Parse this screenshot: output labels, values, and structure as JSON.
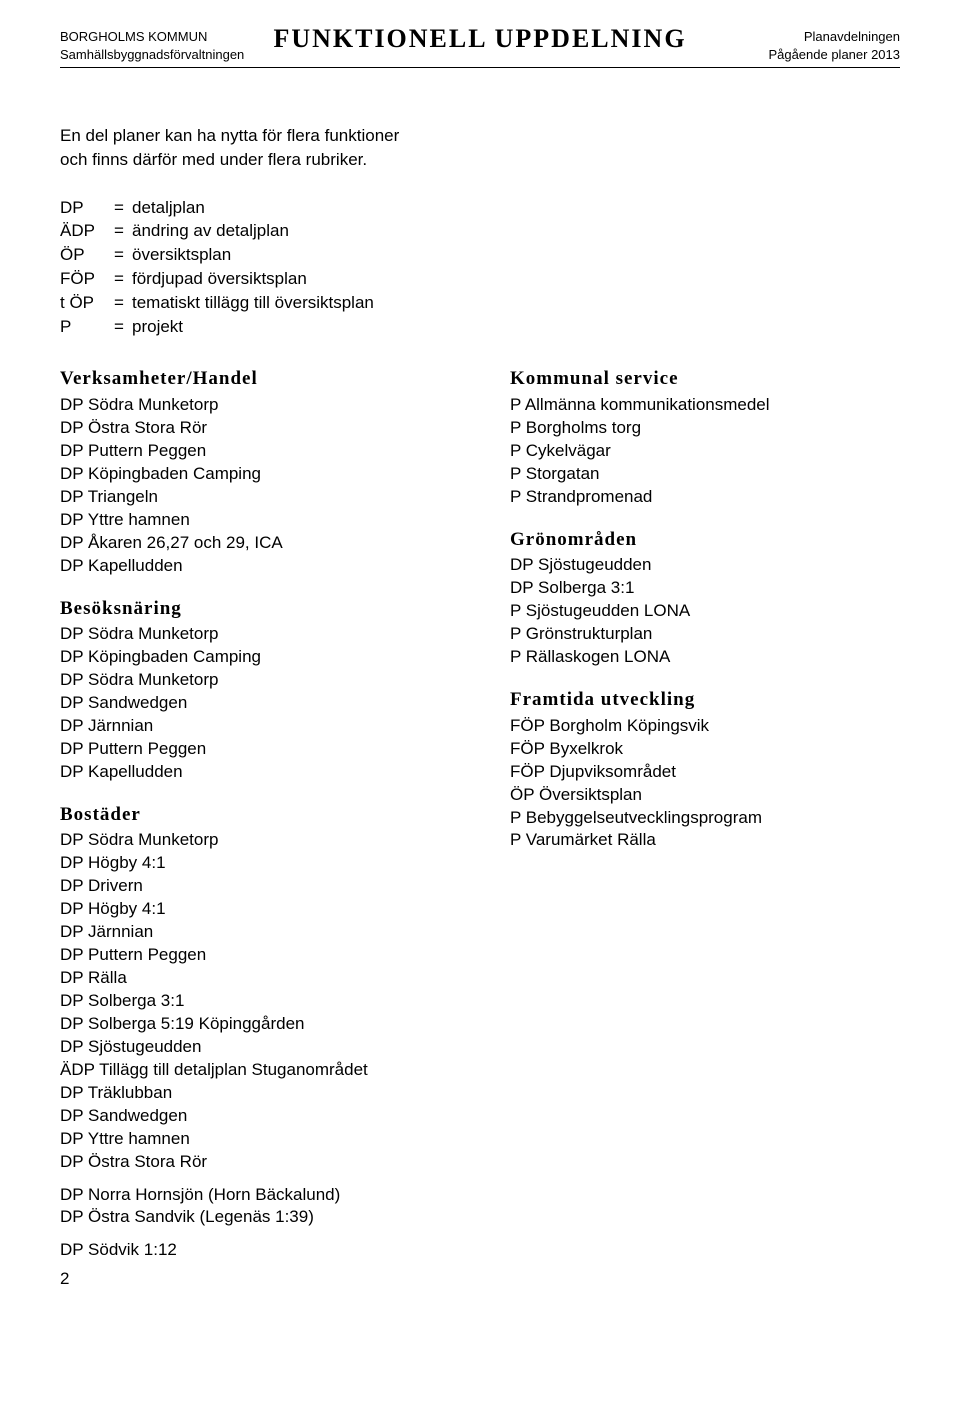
{
  "header": {
    "left_line1": "BORGHOLMS KOMMUN",
    "left_line2": "Samhällsbyggnadsförvaltningen",
    "title": "FUNKTIONELL UPPDELNING",
    "right_line1": "Planavdelningen",
    "right_line2": "Pågående planer 2013"
  },
  "intro": {
    "line1": "En del planer kan ha nytta för flera funktioner",
    "line2": "och finns därför med under flera rubriker."
  },
  "defs": [
    {
      "key": "DP",
      "val": "detaljplan"
    },
    {
      "key": "ÄDP",
      "val": "ändring av detaljplan"
    },
    {
      "key": "ÖP",
      "val": "översiktsplan"
    },
    {
      "key": "FÖP",
      "val": "fördjupad översiktsplan"
    },
    {
      "key": "t ÖP",
      "val": "tematiskt tillägg till översiktsplan"
    },
    {
      "key": "P",
      "val": "projekt"
    }
  ],
  "left": {
    "sec1": {
      "heading": "Verksamheter/Handel",
      "items": [
        "DP Södra Munketorp",
        "DP Östra Stora Rör",
        "DP Puttern Peggen",
        "DP Köpingbaden Camping",
        "DP Triangeln",
        "DP Yttre hamnen",
        "DP Åkaren 26,27 och 29, ICA",
        "DP Kapelludden"
      ]
    },
    "sec2": {
      "heading": "Besöksnäring",
      "items": [
        "DP Södra Munketorp",
        "DP Köpingbaden Camping",
        "DP Södra Munketorp",
        "DP Sandwedgen",
        "DP Järnnian",
        "DP Puttern Peggen",
        "DP Kapelludden"
      ]
    },
    "sec3": {
      "heading": "Bostäder",
      "items_a": [
        "DP Södra Munketorp",
        "DP Högby 4:1",
        "DP Drivern",
        "DP Högby 4:1",
        "DP Järnnian",
        "DP Puttern Peggen",
        "DP Rälla",
        "DP Solberga 3:1",
        "DP Solberga 5:19 Köpinggården",
        "DP Sjöstugeudden",
        "ÄDP Tillägg till detaljplan Stuganområdet",
        "DP Träklubban",
        "DP Sandwedgen",
        "DP Yttre hamnen",
        "DP Östra Stora Rör"
      ],
      "items_b": [
        "DP Norra Hornsjön (Horn Bäckalund)",
        "DP Östra Sandvik (Legenäs 1:39)"
      ],
      "items_c": [
        "DP Södvik 1:12"
      ]
    }
  },
  "right": {
    "sec1": {
      "heading": "Kommunal service",
      "items": [
        "P Allmänna kommunikationsmedel",
        "P Borgholms torg",
        "P Cykelvägar",
        "P Storgatan",
        "P Strandpromenad"
      ]
    },
    "sec2": {
      "heading": "Grönområden",
      "items": [
        "DP Sjöstugeudden",
        "DP Solberga 3:1",
        "P Sjöstugeudden LONA",
        "P Grönstrukturplan",
        "P Rällaskogen LONA"
      ]
    },
    "sec3": {
      "heading": "Framtida utveckling",
      "items": [
        "FÖP Borgholm Köpingsvik",
        "FÖP Byxelkrok",
        "FÖP Djupviksområdet",
        "ÖP Översiktsplan",
        "P Bebyggelseutvecklingsprogram",
        "P Varumärket Rälla"
      ]
    }
  },
  "page_number": "2"
}
